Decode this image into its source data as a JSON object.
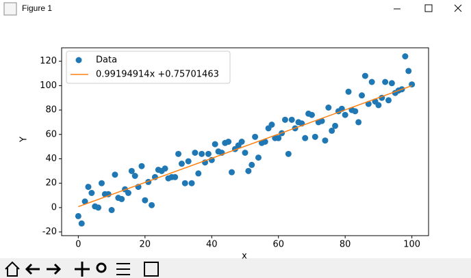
{
  "window": {
    "title": "Figure 1"
  },
  "chart_data": {
    "type": "scatter",
    "xlabel": "x",
    "ylabel": "Y",
    "xlim": [
      -5,
      105
    ],
    "ylim": [
      -23,
      131
    ],
    "xticks": [
      0,
      20,
      40,
      60,
      80,
      100
    ],
    "yticks": [
      -20,
      0,
      20,
      40,
      60,
      80,
      100,
      120
    ],
    "legend": "upper left",
    "series": [
      {
        "name": "Data",
        "type": "scatter",
        "color": "#1f77b4",
        "x": [
          0,
          1,
          2,
          3,
          4,
          5,
          6,
          7,
          8,
          9,
          10,
          11,
          12,
          13,
          14,
          15,
          16,
          17,
          18,
          19,
          20,
          21,
          22,
          23,
          24,
          25,
          26,
          27,
          28,
          29,
          30,
          31,
          32,
          33,
          34,
          35,
          36,
          37,
          38,
          39,
          40,
          41,
          42,
          43,
          44,
          45,
          46,
          47,
          48,
          49,
          50,
          51,
          52,
          53,
          54,
          55,
          56,
          57,
          58,
          59,
          60,
          61,
          62,
          63,
          64,
          65,
          66,
          67,
          68,
          69,
          70,
          71,
          72,
          73,
          74,
          75,
          76,
          77,
          78,
          79,
          80,
          81,
          82,
          83,
          84,
          85,
          86,
          87,
          88,
          89,
          90,
          91,
          92,
          93,
          94,
          95,
          96,
          97,
          98,
          99,
          100
        ],
        "values": [
          -7,
          -13,
          5,
          17,
          12,
          1,
          0,
          20,
          11,
          11,
          -2,
          27,
          8,
          7,
          15,
          12,
          30,
          26,
          17,
          34,
          6,
          21,
          2,
          25,
          31,
          30,
          32,
          24,
          25,
          25,
          44,
          36,
          20,
          38,
          20,
          45,
          28,
          44,
          37,
          44,
          39,
          52,
          46,
          45,
          53,
          54,
          29,
          48,
          51,
          54,
          45,
          30,
          35,
          58,
          41,
          53,
          54,
          65,
          68,
          57,
          57,
          61,
          72,
          44,
          72,
          65,
          70,
          69,
          57,
          77,
          76,
          58,
          70,
          71,
          55,
          82,
          63,
          67,
          79,
          81,
          76,
          95,
          80,
          79,
          70,
          92,
          108,
          85,
          103,
          87,
          84,
          90,
          103,
          88,
          102,
          94,
          96,
          97,
          124,
          112,
          101
        ]
      },
      {
        "name": "0.99194914x +0.75701463",
        "type": "line",
        "color": "#ff7f0e",
        "x": [
          0,
          100
        ],
        "values": [
          0.75701463,
          99.95192863
        ]
      }
    ]
  }
}
